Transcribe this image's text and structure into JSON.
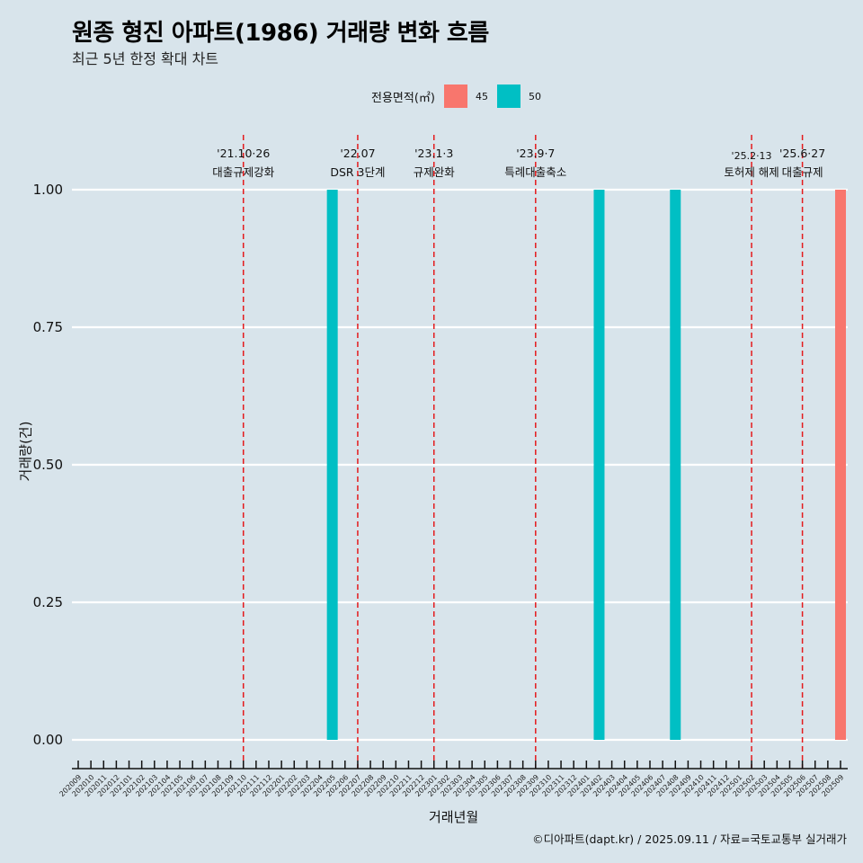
{
  "title": "원종 형진 아파트(1986) 거래량 변화 흐름",
  "subtitle": "최근 5년 한정 확대 차트",
  "caption": "©디아파트(dapt.kr) / 2025.09.11 / 자료=국토교통부 실거래가",
  "legend": {
    "title": "전용면적(㎡)",
    "items": [
      {
        "label": "45",
        "color": "#f8766d"
      },
      {
        "label": "50",
        "color": "#00bfc4"
      }
    ]
  },
  "chart_data": {
    "type": "bar",
    "title": "원종 형진 아파트(1986) 거래량 변화 흐름",
    "subtitle": "최근 5년 한정 확대 차트",
    "xlabel": "거래년월",
    "ylabel": "거래량(건)",
    "ylim": [
      0,
      1
    ],
    "yticks": [
      "0.00",
      "0.25",
      "0.50",
      "0.75",
      "1.00"
    ],
    "ytick_values": [
      0,
      0.25,
      0.5,
      0.75,
      1.0
    ],
    "grid": true,
    "legend_position": "top",
    "categories": [
      "202009",
      "202010",
      "202011",
      "202012",
      "202101",
      "202102",
      "202103",
      "202104",
      "202105",
      "202106",
      "202107",
      "202108",
      "202109",
      "202110",
      "202111",
      "202112",
      "202201",
      "202202",
      "202203",
      "202204",
      "202205",
      "202206",
      "202207",
      "202208",
      "202209",
      "202210",
      "202211",
      "202212",
      "202301",
      "202302",
      "202303",
      "202304",
      "202305",
      "202306",
      "202307",
      "202308",
      "202309",
      "202310",
      "202311",
      "202312",
      "202401",
      "202402",
      "202403",
      "202404",
      "202405",
      "202406",
      "202407",
      "202408",
      "202409",
      "202410",
      "202411",
      "202412",
      "202501",
      "202502",
      "202503",
      "202504",
      "202505",
      "202506",
      "202507",
      "202508",
      "202509"
    ],
    "series": [
      {
        "name": "45",
        "color": "#f8766d",
        "points": [
          {
            "x": "202509",
            "y": 1
          }
        ]
      },
      {
        "name": "50",
        "color": "#00bfc4",
        "points": [
          {
            "x": "202205",
            "y": 1
          },
          {
            "x": "202402",
            "y": 1
          },
          {
            "x": "202408",
            "y": 1
          }
        ]
      }
    ],
    "annotations": [
      {
        "x": "202110",
        "date": "'21.10·26",
        "label": "대출규제강화"
      },
      {
        "x": "202207",
        "date": "'22.07",
        "label": "DSR 3단계"
      },
      {
        "x": "202301",
        "date": "'23.1·3",
        "label": "규제완화"
      },
      {
        "x": "202309",
        "date": "'23.9·7",
        "label": "특례대출축소"
      },
      {
        "x": "202502",
        "date": "'25.2·13",
        "label": "토허제 해제"
      },
      {
        "x": "202506",
        "date": "'25.6·27",
        "label": "대출규제"
      }
    ],
    "vline_color": "#e41a1c"
  }
}
